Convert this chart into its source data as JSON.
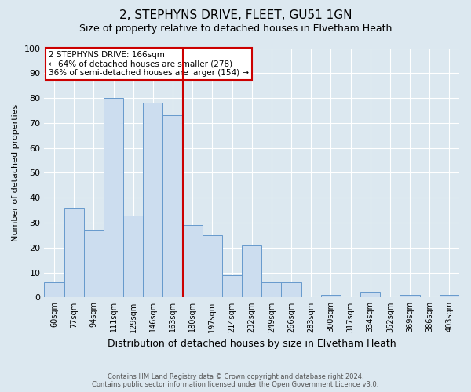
{
  "title": "2, STEPHYNS DRIVE, FLEET, GU51 1GN",
  "subtitle": "Size of property relative to detached houses in Elvetham Heath",
  "xlabel": "Distribution of detached houses by size in Elvetham Heath",
  "ylabel": "Number of detached properties",
  "footer_line1": "Contains HM Land Registry data © Crown copyright and database right 2024.",
  "footer_line2": "Contains public sector information licensed under the Open Government Licence v3.0.",
  "categories": [
    "60sqm",
    "77sqm",
    "94sqm",
    "111sqm",
    "129sqm",
    "146sqm",
    "163sqm",
    "180sqm",
    "197sqm",
    "214sqm",
    "232sqm",
    "249sqm",
    "266sqm",
    "283sqm",
    "300sqm",
    "317sqm",
    "334sqm",
    "352sqm",
    "369sqm",
    "386sqm",
    "403sqm"
  ],
  "values": [
    6,
    36,
    27,
    80,
    33,
    78,
    73,
    29,
    25,
    9,
    21,
    6,
    6,
    0,
    1,
    0,
    2,
    0,
    1,
    0,
    1
  ],
  "bar_color": "#ccddef",
  "bar_edge_color": "#6699cc",
  "property_line_label": "2 STEPHYNS DRIVE: 166sqm",
  "annotation_line2": "← 64% of detached houses are smaller (278)",
  "annotation_line3": "36% of semi-detached houses are larger (154) →",
  "annotation_box_color": "#ffffff",
  "annotation_box_edge_color": "#cc0000",
  "vline_color": "#cc0000",
  "ylim": [
    0,
    100
  ],
  "background_color": "#dce8f0",
  "grid_color": "#ffffff",
  "title_fontsize": 11,
  "subtitle_fontsize": 9
}
